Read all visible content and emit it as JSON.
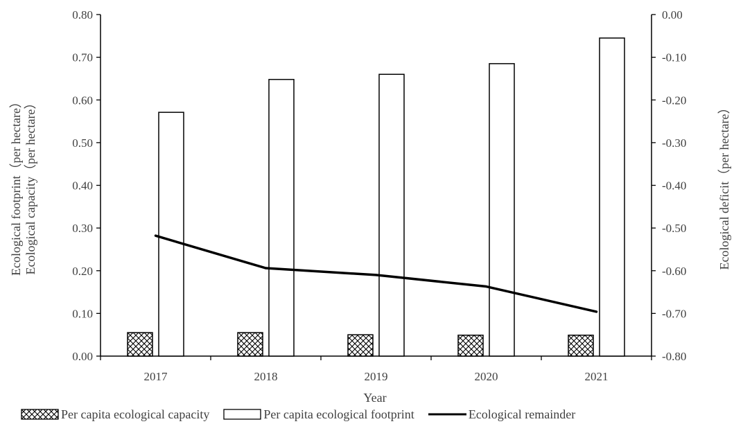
{
  "chart_data": {
    "type": "bar",
    "categories": [
      "2017",
      "2018",
      "2019",
      "2020",
      "2021"
    ],
    "series": [
      {
        "name": "Per capita ecological capacity",
        "kind": "bar",
        "axis": "left",
        "pattern": "crosshatch",
        "values": [
          0.055,
          0.055,
          0.05,
          0.049,
          0.049
        ]
      },
      {
        "name": "Per capita ecological footprint",
        "kind": "bar",
        "axis": "left",
        "pattern": "none",
        "values": [
          0.571,
          0.648,
          0.66,
          0.685,
          0.745
        ]
      },
      {
        "name": "Ecological remainder",
        "kind": "line",
        "axis": "right",
        "values": [
          -0.518,
          -0.594,
          -0.61,
          -0.637,
          -0.696
        ]
      }
    ],
    "xlabel": "Year",
    "ylabel_left_lines": [
      "Ecological  footprint（per hectare）",
      "Ecological capacity（per hectare）"
    ],
    "ylabel_right": "Ecological deficit（per hectare）",
    "ylim_left": [
      0,
      0.8
    ],
    "ylim_right": [
      -0.8,
      0
    ],
    "yticks_left": [
      "0.00",
      "0.10",
      "0.20",
      "0.30",
      "0.40",
      "0.50",
      "0.60",
      "0.70",
      "0.80"
    ],
    "yticks_right": [
      "-0.80",
      "-0.70",
      "-0.60",
      "-0.50",
      "-0.40",
      "-0.30",
      "-0.20",
      "-0.10",
      "0.00"
    ],
    "grid": false,
    "legend_position": "bottom"
  },
  "legend": {
    "capacity": "Per capita ecological capacity",
    "footprint": "Per capita ecological footprint",
    "remainder": "Ecological remainder"
  },
  "colors": {
    "axis": "#000000",
    "line": "#000000",
    "bar_fill": "#ffffff",
    "text": "#404040"
  }
}
